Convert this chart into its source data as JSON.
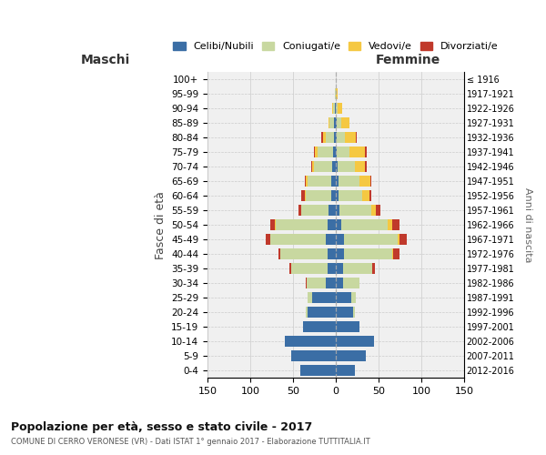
{
  "age_groups": [
    "0-4",
    "5-9",
    "10-14",
    "15-19",
    "20-24",
    "25-29",
    "30-34",
    "35-39",
    "40-44",
    "45-49",
    "50-54",
    "55-59",
    "60-64",
    "65-69",
    "70-74",
    "75-79",
    "80-84",
    "85-89",
    "90-94",
    "95-99",
    "100+"
  ],
  "birth_years": [
    "2012-2016",
    "2007-2011",
    "2002-2006",
    "1997-2001",
    "1992-1996",
    "1987-1991",
    "1982-1986",
    "1977-1981",
    "1972-1976",
    "1967-1971",
    "1962-1966",
    "1957-1961",
    "1952-1956",
    "1947-1951",
    "1942-1946",
    "1937-1941",
    "1932-1936",
    "1927-1931",
    "1922-1926",
    "1917-1921",
    "≤ 1916"
  ],
  "maschi_celibi": [
    42,
    52,
    60,
    38,
    33,
    28,
    12,
    10,
    10,
    12,
    10,
    8,
    5,
    5,
    4,
    3,
    2,
    2,
    1,
    0,
    0
  ],
  "maschi_coniugati": [
    0,
    0,
    0,
    0,
    2,
    5,
    22,
    42,
    55,
    65,
    60,
    32,
    30,
    28,
    22,
    18,
    10,
    5,
    2,
    1,
    0
  ],
  "maschi_vedovi": [
    0,
    0,
    0,
    0,
    0,
    0,
    0,
    0,
    0,
    0,
    1,
    1,
    1,
    2,
    2,
    3,
    3,
    2,
    1,
    0,
    0
  ],
  "maschi_divorziati": [
    0,
    0,
    0,
    0,
    0,
    0,
    1,
    2,
    2,
    5,
    6,
    3,
    5,
    1,
    1,
    2,
    2,
    0,
    0,
    0,
    0
  ],
  "femmine_celibi": [
    22,
    35,
    45,
    28,
    20,
    18,
    8,
    8,
    10,
    10,
    6,
    4,
    3,
    3,
    2,
    1,
    1,
    1,
    0,
    0,
    0
  ],
  "femmine_coniugati": [
    0,
    0,
    0,
    0,
    2,
    5,
    20,
    35,
    56,
    62,
    55,
    38,
    28,
    25,
    20,
    15,
    10,
    5,
    2,
    0,
    0
  ],
  "femmine_vedovi": [
    0,
    0,
    0,
    0,
    0,
    0,
    0,
    0,
    1,
    3,
    5,
    5,
    8,
    12,
    12,
    18,
    12,
    10,
    5,
    2,
    0
  ],
  "femmine_divorziati": [
    0,
    0,
    0,
    0,
    0,
    0,
    0,
    3,
    8,
    8,
    8,
    5,
    3,
    2,
    2,
    2,
    2,
    0,
    0,
    0,
    0
  ],
  "colors": {
    "celibi": "#3B6EA5",
    "coniugati": "#C8D8A0",
    "vedovi": "#F5C842",
    "divorziati": "#C0392B"
  },
  "title": "Popolazione per età, sesso e stato civile - 2017",
  "subtitle": "COMUNE DI CERRO VERONESE (VR) - Dati ISTAT 1° gennaio 2017 - Elaborazione TUTTITALIA.IT",
  "xlabel_left": "Maschi",
  "xlabel_right": "Femmine",
  "ylabel": "Fasce di età",
  "ylabel_right": "Anni di nascita",
  "xlim": 150,
  "legend_labels": [
    "Celibi/Nubili",
    "Coniugati/e",
    "Vedovi/e",
    "Divorziati/e"
  ]
}
